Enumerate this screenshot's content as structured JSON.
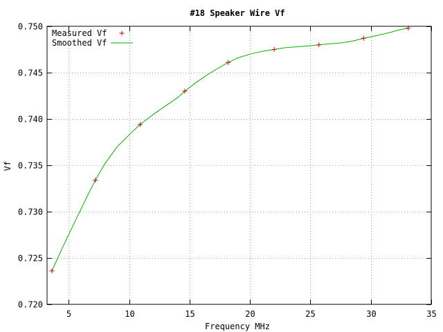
{
  "chart_data": {
    "type": "scatter",
    "title": "#18 Speaker Wire Vf",
    "xlabel": "Frequency MHz",
    "ylabel": "Vf",
    "xlim": [
      3.2,
      35
    ],
    "ylim": [
      0.72,
      0.75
    ],
    "x_ticks": [
      5,
      10,
      15,
      20,
      25,
      30,
      35
    ],
    "x_tick_labels": [
      "5",
      "10",
      "15",
      "20",
      "25",
      "30",
      "35"
    ],
    "y_ticks": [
      0.72,
      0.725,
      0.73,
      0.735,
      0.74,
      0.745,
      0.75
    ],
    "y_tick_labels": [
      "0.720",
      "0.725",
      "0.730",
      "0.735",
      "0.740",
      "0.745",
      "0.750"
    ],
    "grid": true,
    "legend_position": "top-left",
    "series": [
      {
        "name": "Measured Vf",
        "style": "points",
        "marker": "+",
        "color": "#cc0000",
        "x": [
          3.6,
          7.2,
          10.9,
          14.6,
          18.2,
          22.0,
          25.7,
          29.4,
          33.1
        ],
        "y": [
          0.7236,
          0.7334,
          0.7394,
          0.743,
          0.7461,
          0.7475,
          0.748,
          0.7487,
          0.7498
        ]
      },
      {
        "name": "Smoothed Vf",
        "style": "line",
        "color": "#00b000",
        "x": [
          3.6,
          4.5,
          5.5,
          6.5,
          7.2,
          8.0,
          9.0,
          10.0,
          10.9,
          12.0,
          13.0,
          14.0,
          14.6,
          15.5,
          16.5,
          17.5,
          18.2,
          19.0,
          20.0,
          21.0,
          22.0,
          23.0,
          24.0,
          25.0,
          25.7,
          26.5,
          27.5,
          28.5,
          29.4,
          30.5,
          31.5,
          32.3,
          33.1
        ],
        "y": [
          0.7236,
          0.7262,
          0.7289,
          0.7316,
          0.7334,
          0.7352,
          0.737,
          0.7383,
          0.7394,
          0.7405,
          0.7414,
          0.7423,
          0.743,
          0.7439,
          0.7448,
          0.7456,
          0.7461,
          0.7466,
          0.747,
          0.7473,
          0.7475,
          0.7477,
          0.7478,
          0.7479,
          0.748,
          0.7481,
          0.7482,
          0.7484,
          0.7487,
          0.749,
          0.7493,
          0.7496,
          0.7498
        ]
      }
    ]
  }
}
